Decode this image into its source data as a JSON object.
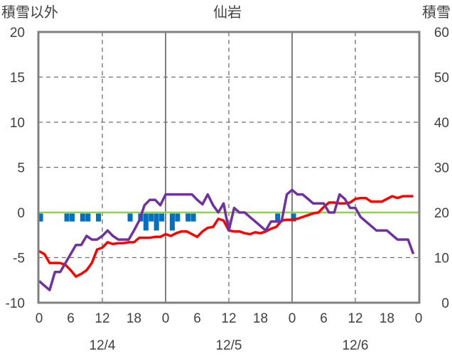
{
  "chart_data": {
    "type": "line",
    "title": "仙岩",
    "ylabel_left": "積雪以外",
    "ylabel_right": "積雪",
    "ylim_left": [
      -10,
      20
    ],
    "ylim_right": [
      0,
      60
    ],
    "yticks_left": [
      "20",
      "15",
      "10",
      "5",
      "0",
      "-5",
      "-10"
    ],
    "yticks_right": [
      "60",
      "50",
      "40",
      "30",
      "20",
      "10",
      "0"
    ],
    "xlim_hours": [
      0,
      72
    ],
    "xticks": [
      "0",
      "6",
      "12",
      "18",
      "0",
      "6",
      "12",
      "18",
      "0",
      "6",
      "12",
      "18",
      "0"
    ],
    "date_labels": [
      "12/4",
      "12/5",
      "12/6"
    ],
    "grid": "vertical dashed every 12h, solid at day boundaries, horizontal dashed every 5",
    "zero_line_color": "#92d050",
    "series": [
      {
        "color": "#ff0000",
        "axis": "left",
        "kind": "line",
        "x": [
          0,
          1,
          2,
          3,
          4,
          5,
          6,
          7,
          8,
          9,
          10,
          11,
          12,
          13,
          14,
          15,
          16,
          17,
          18,
          19,
          20,
          21,
          22,
          23,
          24,
          25,
          26,
          27,
          28,
          29,
          30,
          31,
          32,
          33,
          34,
          35,
          36,
          37,
          38,
          39,
          40,
          41,
          42,
          43,
          44,
          45,
          46,
          47,
          48,
          49,
          50,
          51,
          52,
          53,
          54,
          55,
          56,
          57,
          58,
          59,
          60,
          61,
          62,
          63,
          64,
          65,
          66,
          67,
          68,
          69,
          70,
          71
        ],
        "values": [
          -4.3,
          -4.6,
          -5.6,
          -5.6,
          -5.6,
          -5.8,
          -6.4,
          -7.1,
          -6.8,
          -6.4,
          -5.6,
          -4.1,
          -3.9,
          -3.3,
          -3.5,
          -3.4,
          -3.4,
          -3.3,
          -3.3,
          -2.8,
          -2.8,
          -2.8,
          -2.7,
          -2.7,
          -2.4,
          -2.6,
          -2.3,
          -2.1,
          -2.1,
          -2.4,
          -2.7,
          -2.1,
          -1.7,
          -1.6,
          -0.7,
          -0.9,
          -2.0,
          -2.1,
          -2.1,
          -2.3,
          -2.4,
          -2.2,
          -2.3,
          -2.1,
          -1.8,
          -1.6,
          -0.9,
          -0.8,
          -0.8,
          -0.7,
          -0.5,
          -0.3,
          -0.1,
          0.0,
          0.6,
          1.1,
          1.1,
          1.0,
          1.0,
          1.1,
          1.5,
          1.6,
          1.6,
          1.2,
          1.2,
          1.2,
          1.5,
          1.8,
          1.6,
          1.8,
          1.8,
          1.8
        ]
      },
      {
        "color": "#7030a0",
        "axis": "left",
        "kind": "line",
        "x": [
          0,
          1,
          2,
          3,
          4,
          5,
          6,
          7,
          8,
          9,
          10,
          11,
          12,
          13,
          14,
          15,
          16,
          17,
          18,
          19,
          20,
          21,
          22,
          23,
          24,
          25,
          26,
          27,
          28,
          29,
          30,
          31,
          32,
          33,
          34,
          35,
          36,
          37,
          38,
          39,
          40,
          41,
          42,
          43,
          44,
          45,
          46,
          47,
          48,
          49,
          50,
          51,
          52,
          53,
          54,
          55,
          56,
          57,
          58,
          59,
          60,
          61,
          62,
          63,
          64,
          65,
          66,
          67,
          68,
          69,
          70,
          71
        ],
        "values": [
          -7.6,
          -8.1,
          -8.6,
          -6.6,
          -6.6,
          -5.6,
          -4.6,
          -3.6,
          -3.6,
          -2.6,
          -3.0,
          -3.0,
          -2.6,
          -2.0,
          -2.6,
          -3.0,
          -3.0,
          -3.0,
          -2.0,
          -0.9,
          0.8,
          1.4,
          1.4,
          0.8,
          2.0,
          2.0,
          2.0,
          2.0,
          2.0,
          2.0,
          1.4,
          0.9,
          2.0,
          0.8,
          0.0,
          1.0,
          -2.0,
          0.5,
          0.0,
          0.0,
          -0.5,
          -1.0,
          -1.5,
          -2.0,
          -1.0,
          -1.0,
          -1.0,
          2.0,
          2.5,
          2.0,
          2.0,
          1.5,
          1.0,
          1.0,
          1.0,
          0.0,
          0.0,
          2.0,
          1.5,
          0.5,
          0.5,
          -0.5,
          -1.0,
          -1.5,
          -2.0,
          -2.0,
          -2.0,
          -2.5,
          -3.0,
          -3.0,
          -3.0,
          -4.6
        ]
      },
      {
        "color": "#0070c0",
        "axis": "left",
        "kind": "bar",
        "hours": [
          0,
          5,
          6,
          8,
          9,
          11,
          17,
          19,
          20,
          21,
          22,
          23,
          25,
          26,
          28,
          29,
          45,
          48
        ],
        "values": [
          -1,
          -1,
          -1,
          -1,
          -1,
          -1,
          -1,
          -1,
          -2,
          -1,
          -2,
          -1,
          -2,
          -1,
          -1,
          -1,
          -1,
          -1
        ]
      }
    ]
  }
}
